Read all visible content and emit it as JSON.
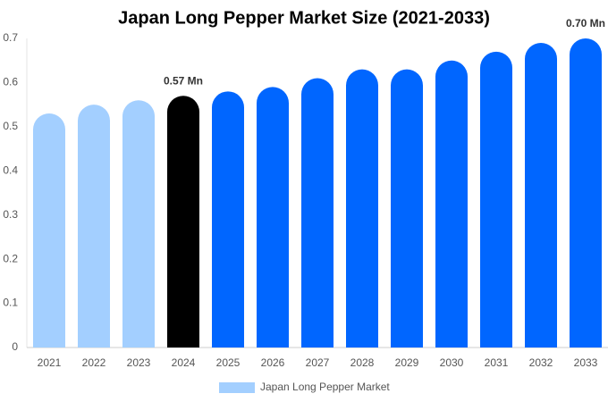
{
  "chart_data": {
    "type": "bar",
    "title": "Japan Long Pepper Market Size (2021-2033)",
    "categories": [
      "2021",
      "2022",
      "2023",
      "2024",
      "2025",
      "2026",
      "2027",
      "2028",
      "2029",
      "2030",
      "2031",
      "2032",
      "2033"
    ],
    "series": [
      {
        "name": "Japan Long Pepper Market",
        "color": "#a3cfff",
        "values": [
          0.53,
          0.55,
          0.56,
          0.57,
          0.58,
          0.59,
          0.61,
          0.63,
          0.63,
          0.65,
          0.67,
          0.69,
          0.7
        ],
        "value_labels": [
          null,
          null,
          null,
          "0.57 Mn",
          null,
          null,
          null,
          null,
          null,
          null,
          null,
          null,
          "0.70 Mn"
        ],
        "bar_colors": [
          "#a3cfff",
          "#a3cfff",
          "#a3cfff",
          "#000000",
          "#0066ff",
          "#0066ff",
          "#0066ff",
          "#0066ff",
          "#0066ff",
          "#0066ff",
          "#0066ff",
          "#0066ff",
          "#0066ff"
        ]
      }
    ],
    "ylim": [
      0,
      0.7
    ],
    "yticks": [
      0,
      0.1,
      0.2,
      0.3,
      0.4,
      0.5,
      0.6,
      0.7
    ],
    "grid": false,
    "legend": "bottom"
  }
}
